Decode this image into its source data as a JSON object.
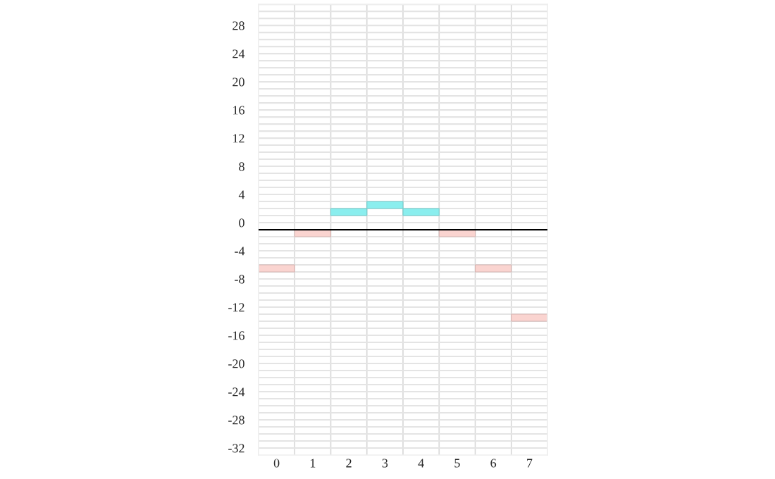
{
  "chart_data": {
    "type": "bar",
    "categories": [
      "0",
      "1",
      "2",
      "3",
      "4",
      "5",
      "6",
      "7"
    ],
    "base": [
      -7,
      -2,
      1,
      2,
      1,
      -2,
      -7,
      -14
    ],
    "values": [
      1,
      1,
      1,
      1,
      1,
      1,
      1,
      1
    ],
    "colors": [
      "#fad4d0",
      "#fad4d0",
      "#8aeeee",
      "#8aeeee",
      "#8aeeee",
      "#fad4d0",
      "#fad4d0",
      "#fad4d0"
    ],
    "ylim": [
      -33,
      31
    ],
    "yticks": [
      {
        "value": -32,
        "label": "-32"
      },
      {
        "value": -31,
        "label": null
      },
      {
        "value": -30,
        "label": null
      },
      {
        "value": -29,
        "label": null
      },
      {
        "value": -28,
        "label": "-28"
      },
      {
        "value": -27,
        "label": null
      },
      {
        "value": -26,
        "label": null
      },
      {
        "value": -25,
        "label": null
      },
      {
        "value": -24,
        "label": "-24"
      },
      {
        "value": -23,
        "label": null
      },
      {
        "value": -22,
        "label": null
      },
      {
        "value": -21,
        "label": null
      },
      {
        "value": -20,
        "label": "-20"
      },
      {
        "value": -19,
        "label": null
      },
      {
        "value": -18,
        "label": null
      },
      {
        "value": -17,
        "label": null
      },
      {
        "value": -16,
        "label": "-16"
      },
      {
        "value": -15,
        "label": null
      },
      {
        "value": -14,
        "label": null
      },
      {
        "value": -13,
        "label": null
      },
      {
        "value": -12,
        "label": "-12"
      },
      {
        "value": -11,
        "label": null
      },
      {
        "value": -10,
        "label": null
      },
      {
        "value": -9,
        "label": null
      },
      {
        "value": -8,
        "label": "-8"
      },
      {
        "value": -7,
        "label": null
      },
      {
        "value": -6,
        "label": null
      },
      {
        "value": -5,
        "label": null
      },
      {
        "value": -4,
        "label": "-4"
      },
      {
        "value": -3,
        "label": null
      },
      {
        "value": -2,
        "label": null
      },
      {
        "value": -1,
        "label": null
      },
      0,
      {
        "value": 1,
        "label": null
      },
      {
        "value": 2,
        "label": null
      },
      {
        "value": 3,
        "label": null
      },
      4,
      {
        "value": 5,
        "label": null
      },
      {
        "value": 6,
        "label": null
      },
      {
        "value": 7,
        "label": null
      },
      8,
      {
        "value": 9,
        "label": null
      },
      {
        "value": 10,
        "label": null
      },
      {
        "value": 11,
        "label": null
      },
      12,
      {
        "value": 13,
        "label": null
      },
      {
        "value": 14,
        "label": null
      },
      {
        "value": 15,
        "label": null
      },
      16,
      {
        "value": 17,
        "label": null
      },
      {
        "value": 18,
        "label": null
      },
      {
        "value": 19,
        "label": null
      },
      20,
      {
        "value": 21,
        "label": null
      },
      {
        "value": 22,
        "label": null
      },
      {
        "value": 23,
        "label": null
      },
      24,
      {
        "value": 25,
        "label": null
      },
      {
        "value": 26,
        "label": null
      },
      {
        "value": 27,
        "label": null
      },
      28,
      {
        "value": 29,
        "label": null
      },
      {
        "value": 30,
        "label": null
      },
      {
        "value": 31,
        "label": null
      }
    ],
    "ref_lines": [
      {
        "axis": "y",
        "value": -1,
        "color": "#000000",
        "line_style": "solid"
      }
    ],
    "grid": true,
    "legend": false
  }
}
